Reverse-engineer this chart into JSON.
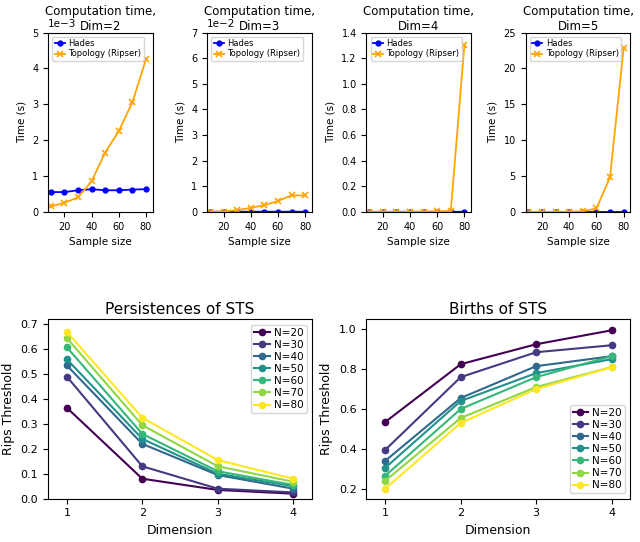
{
  "sample_sizes": [
    10,
    20,
    30,
    40,
    50,
    60,
    70,
    80
  ],
  "hades_dim2": [
    0.00055,
    0.00055,
    0.0006,
    0.00063,
    0.0006,
    0.0006,
    0.00062,
    0.00063
  ],
  "ripser_dim2": [
    0.00015,
    0.00025,
    0.0004,
    0.00085,
    0.00165,
    0.00225,
    0.00305,
    0.00425
  ],
  "hades_dim3": [
    3e-05,
    3e-05,
    3e-05,
    4e-05,
    4e-05,
    4e-05,
    4e-05,
    4e-05
  ],
  "ripser_dim3": [
    3e-05,
    0.0001,
    0.0007,
    0.0015,
    0.0026,
    0.0042,
    0.0064,
    0.0064
  ],
  "hades_dim4": [
    2e-05,
    2e-05,
    2e-05,
    3e-05,
    3e-05,
    3e-05,
    3e-05,
    3e-05
  ],
  "ripser_dim4": [
    1e-05,
    2e-05,
    0.0001,
    0.0006,
    0.0015,
    0.0035,
    0.0068,
    1.3
  ],
  "hades_dim5": [
    2e-05,
    2e-05,
    3e-05,
    3e-05,
    3e-05,
    3e-05,
    3e-05,
    3e-05
  ],
  "ripser_dim5": [
    1e-05,
    5e-05,
    0.0008,
    0.009,
    0.075,
    0.47,
    4.8,
    22.8
  ],
  "hades_color": "#0000ff",
  "ripser_color": "#ffa500",
  "hades_label": "Hades",
  "ripser_label": "Topology (Ripser)",
  "top_titles": [
    "Computation time,\nDim=2",
    "Computation time,\nDim=3",
    "Computation time,\nDim=4",
    "Computation time,\nDim=5"
  ],
  "top_ylabel": "Time (s)",
  "top_xlabel": "Sample size",
  "dims": [
    1,
    2,
    3,
    4
  ],
  "persistence_data": {
    "N20": [
      0.365,
      0.08,
      0.035,
      0.02
    ],
    "N30": [
      0.49,
      0.13,
      0.04,
      0.025
    ],
    "N40": [
      0.535,
      0.22,
      0.095,
      0.04
    ],
    "N50": [
      0.56,
      0.24,
      0.1,
      0.05
    ],
    "N60": [
      0.608,
      0.26,
      0.11,
      0.055
    ],
    "N70": [
      0.645,
      0.295,
      0.13,
      0.068
    ],
    "N80": [
      0.67,
      0.325,
      0.155,
      0.08
    ]
  },
  "births_data": {
    "N20": [
      0.535,
      0.825,
      0.925,
      0.995
    ],
    "N30": [
      0.395,
      0.76,
      0.885,
      0.92
    ],
    "N40": [
      0.34,
      0.655,
      0.815,
      0.865
    ],
    "N50": [
      0.305,
      0.64,
      0.78,
      0.85
    ],
    "N60": [
      0.265,
      0.6,
      0.76,
      0.865
    ],
    "N70": [
      0.24,
      0.555,
      0.71,
      0.81
    ],
    "N80": [
      0.2,
      0.53,
      0.7,
      0.81
    ]
  },
  "n_labels": [
    "N=20",
    "N=30",
    "N=40",
    "N=50",
    "N=60",
    "N=70",
    "N=80"
  ],
  "persistence_title": "Persistences of STS",
  "births_title": "Births of STS",
  "bottom_ylabel": "Rips Threshold",
  "bottom_xlabel": "Dimension"
}
